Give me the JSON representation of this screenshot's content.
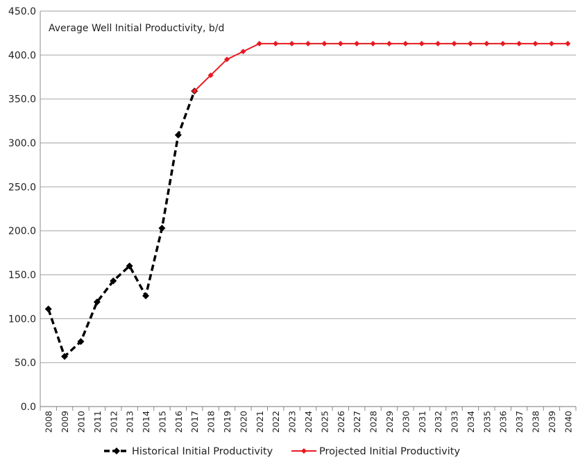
{
  "chart_data": {
    "type": "line",
    "title": "Average Well Initial Productivity, b/d",
    "xlabel": "",
    "ylabel": "",
    "ylim": [
      0,
      450
    ],
    "yticks": [
      "0.0",
      "50.0",
      "100.0",
      "150.0",
      "200.0",
      "250.0",
      "300.0",
      "350.0",
      "400.0",
      "450.0"
    ],
    "grid": true,
    "legend_position": "bottom",
    "x": [
      2008,
      2009,
      2010,
      2011,
      2012,
      2013,
      2014,
      2015,
      2016,
      2017,
      2018,
      2019,
      2020,
      2021,
      2022,
      2023,
      2024,
      2025,
      2026,
      2027,
      2028,
      2029,
      2030,
      2031,
      2032,
      2033,
      2034,
      2035,
      2036,
      2037,
      2038,
      2039,
      2040
    ],
    "series": [
      {
        "name": "Historical Initial Productivity",
        "color": "#000000",
        "style": "dashed",
        "marker": "diamond",
        "x": [
          2008,
          2009,
          2010,
          2011,
          2012,
          2013,
          2014,
          2015,
          2016,
          2017
        ],
        "values": [
          111,
          57,
          74,
          119,
          143,
          160,
          126,
          203,
          309,
          359
        ]
      },
      {
        "name": "Projected Initial Productivity",
        "color": "#e8191f",
        "style": "solid",
        "marker": "diamond",
        "x": [
          2017,
          2018,
          2019,
          2020,
          2021,
          2022,
          2023,
          2024,
          2025,
          2026,
          2027,
          2028,
          2029,
          2030,
          2031,
          2032,
          2033,
          2034,
          2035,
          2036,
          2037,
          2038,
          2039,
          2040
        ],
        "values": [
          359,
          377,
          395,
          404,
          413,
          413,
          413,
          413,
          413,
          413,
          413,
          413,
          413,
          413,
          413,
          413,
          413,
          413,
          413,
          413,
          413,
          413,
          413,
          413
        ]
      }
    ]
  }
}
